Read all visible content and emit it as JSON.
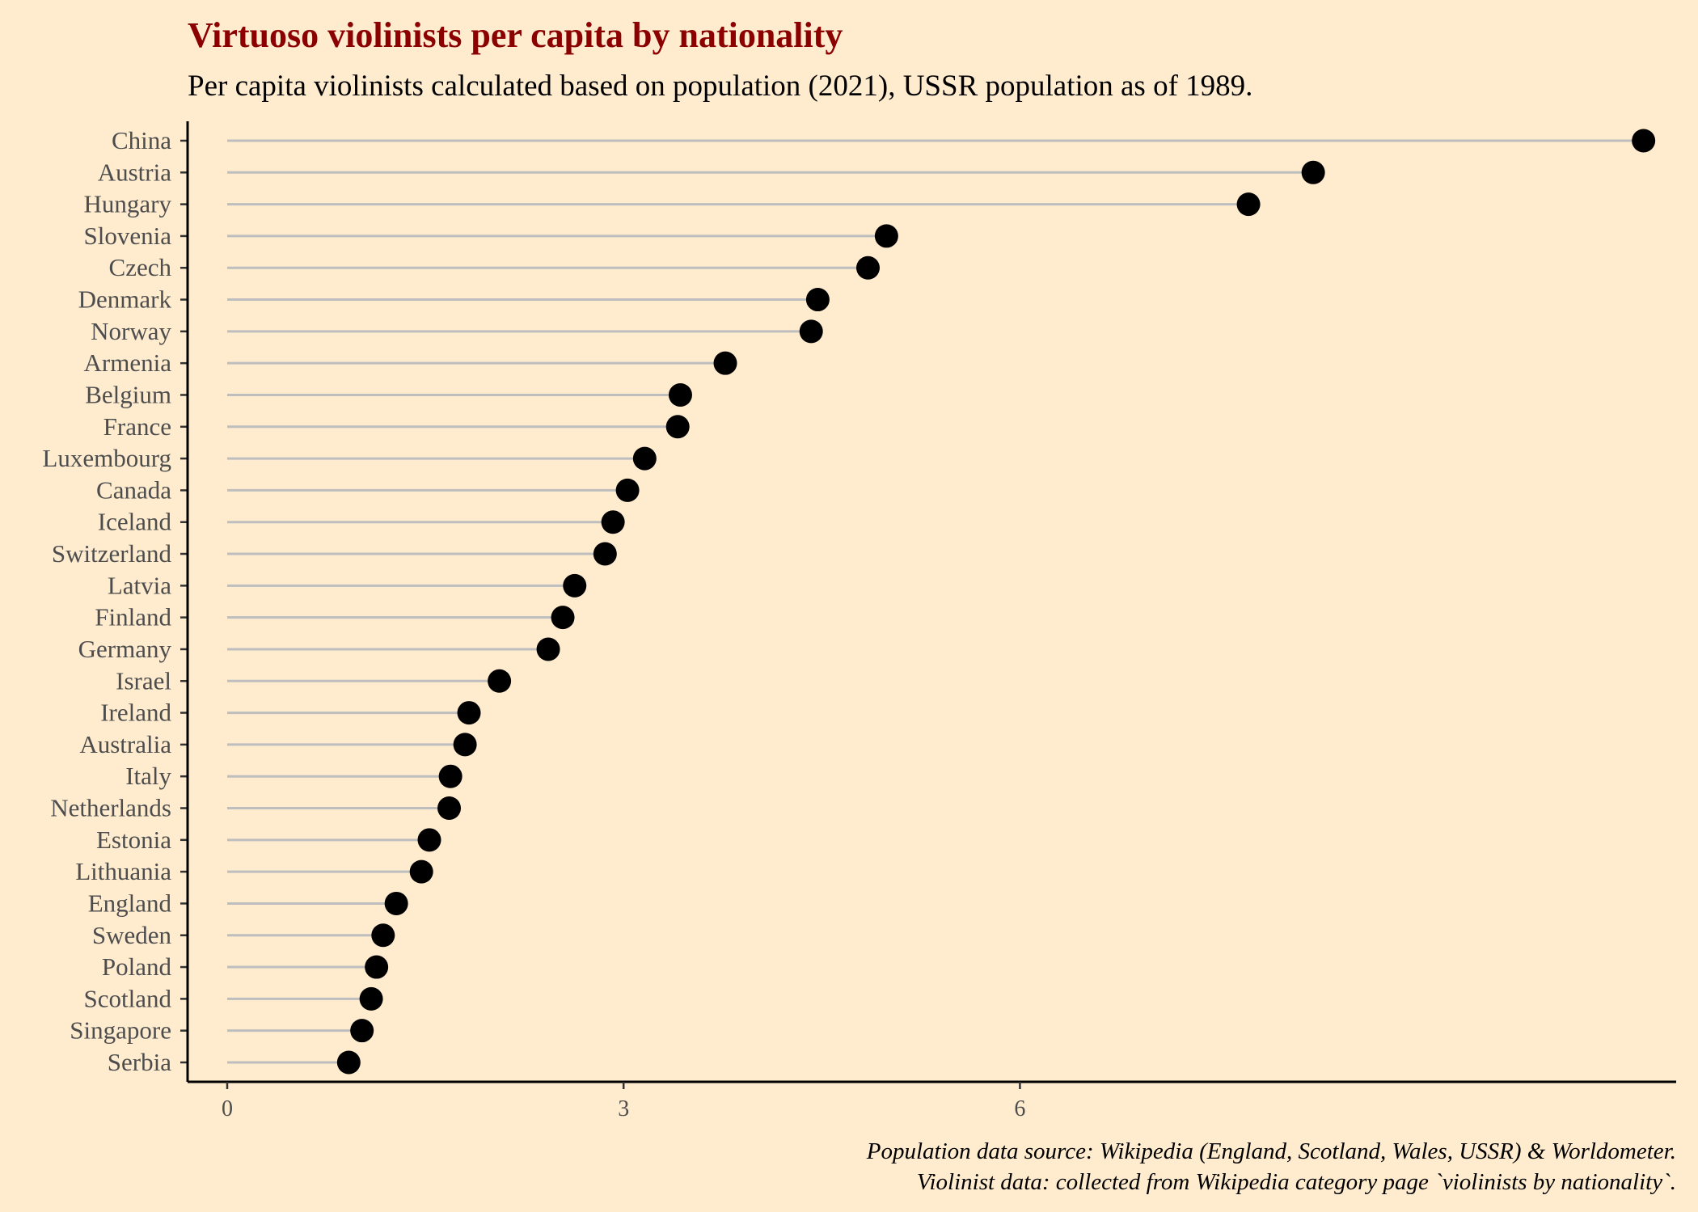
{
  "chart_data": {
    "type": "scatter",
    "title": "Virtuoso violinists per capita by nationality",
    "subtitle": "Per capita violinists calculated based on population (2021), USSR population as of 1989.",
    "caption": [
      "Population data source: Wikipedia (England, Scotland, Wales, USSR) & Worldometer.",
      "Violinist data: collected from Wikipedia category page `violinists by nationality`."
    ],
    "xlabel": "",
    "ylabel": "",
    "xlim": [
      -0.3,
      11.0
    ],
    "xticks": [
      0,
      3,
      6
    ],
    "grid": false,
    "legend": "none",
    "categories": [
      "China",
      "Austria",
      "Hungary",
      "Slovenia",
      "Czech",
      "Denmark",
      "Norway",
      "Armenia",
      "Belgium",
      "France",
      "Luxembourg",
      "Canada",
      "Iceland",
      "Switzerland",
      "Latvia",
      "Finland",
      "Germany",
      "Israel",
      "Ireland",
      "Australia",
      "Italy",
      "Netherlands",
      "Estonia",
      "Lithuania",
      "England",
      "Sweden",
      "Poland",
      "Scotland",
      "Singapore",
      "Serbia"
    ],
    "values": [
      10.72,
      8.22,
      7.73,
      4.99,
      4.85,
      4.47,
      4.42,
      3.77,
      3.43,
      3.41,
      3.16,
      3.03,
      2.92,
      2.86,
      2.63,
      2.54,
      2.43,
      2.06,
      1.83,
      1.8,
      1.69,
      1.68,
      1.53,
      1.47,
      1.28,
      1.18,
      1.13,
      1.09,
      1.02,
      0.92
    ],
    "colors": {
      "point": "#000000",
      "segment": "#bebebe",
      "title": "#8b0000",
      "background": "#ffeccf"
    }
  }
}
